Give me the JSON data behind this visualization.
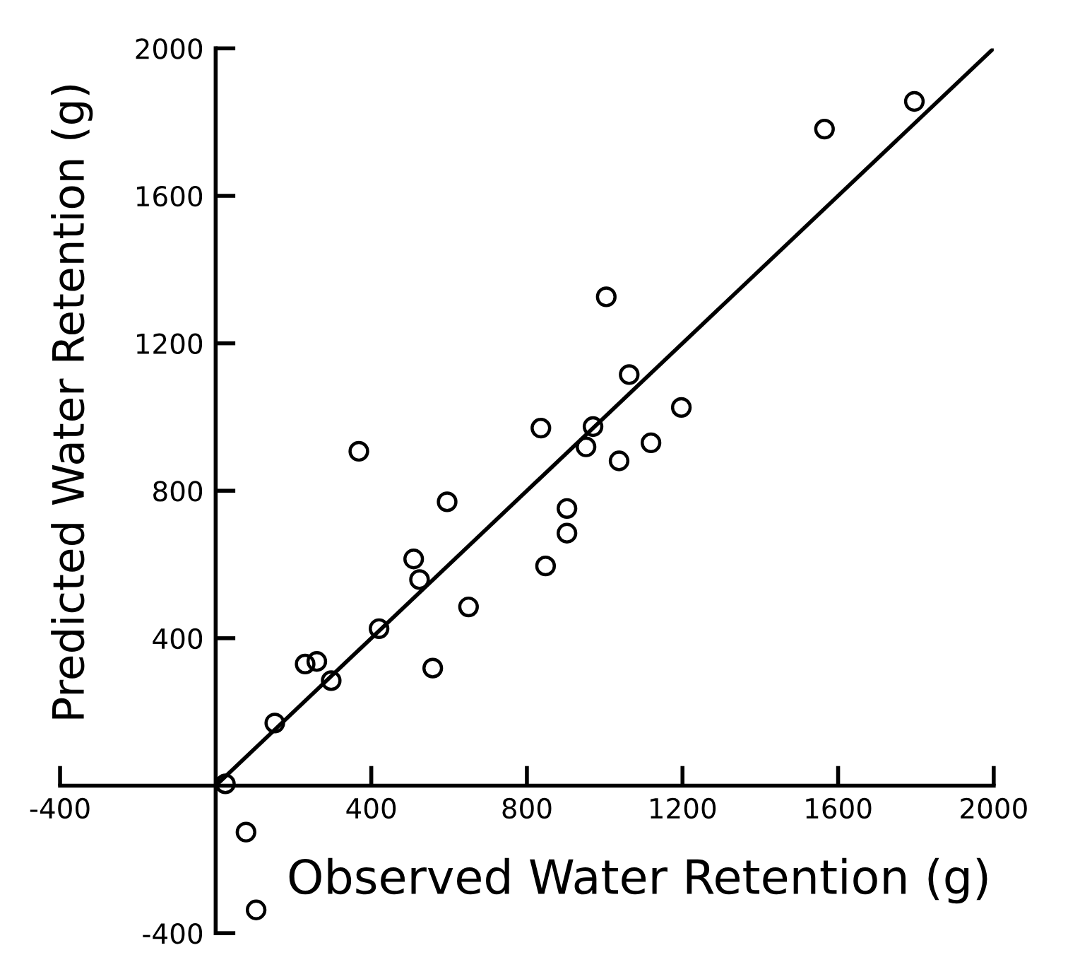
{
  "chart_data": {
    "type": "scatter",
    "xlabel": "Observed Water Retention (g)",
    "ylabel": "Predicted Water Retention (g)",
    "xlim": [
      -400,
      2000
    ],
    "ylim": [
      -400,
      2000
    ],
    "xticks": [
      -400,
      400,
      800,
      1200,
      1600,
      2000
    ],
    "yticks": [
      -400,
      400,
      800,
      1200,
      1600,
      2000
    ],
    "grid": false,
    "legend": false,
    "series": [
      {
        "color": "#000000",
        "marker": "circle",
        "x": [
          25,
          78,
          104,
          152,
          230,
          260,
          297,
          420,
          509,
          524,
          558,
          650,
          848,
          368,
          595,
          836,
          970,
          952,
          1037,
          1119,
          1197,
          1063,
          1004,
          1565,
          1796,
          903,
          903
        ],
        "values": [
          5,
          -126,
          -337,
          170,
          330,
          337,
          285,
          426,
          615,
          559,
          319,
          485,
          596,
          907,
          770,
          970,
          974,
          919,
          881,
          930,
          1026,
          1115,
          1326,
          1781,
          1856,
          752,
          685
        ]
      },
      {
        "type": "line",
        "color": "#000000",
        "line_style": "solid",
        "marker": "none",
        "x": [
          0,
          2000
        ],
        "values": [
          0,
          2000
        ]
      }
    ]
  }
}
